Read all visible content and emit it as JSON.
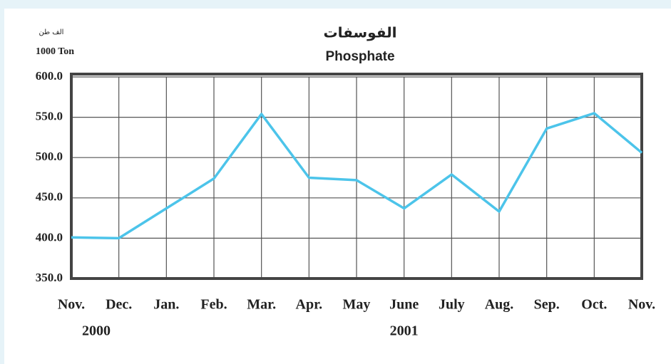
{
  "chart_data": {
    "type": "line",
    "title_ar": "الفوسفات",
    "title": "Phosphate",
    "unit_ar": "الف طن",
    "unit": "1000 Ton",
    "categories": [
      "Nov.",
      "Dec.",
      "Jan.",
      "Feb.",
      "Mar.",
      "Apr.",
      "May",
      "June",
      "July",
      "Aug.",
      "Sep.",
      "Oct.",
      "Nov."
    ],
    "year_labels": [
      "2000",
      "2001"
    ],
    "series": [
      {
        "name": "Phosphate",
        "color": "#4cc4ea",
        "values": [
          401,
          400,
          437,
          474,
          554,
          475,
          472,
          437,
          479,
          433,
          536,
          555,
          506
        ]
      }
    ],
    "ylim": [
      350,
      600
    ],
    "yticks": [
      {
        "value": 350,
        "label": "350.0"
      },
      {
        "value": 400,
        "label": "400.0"
      },
      {
        "value": 450,
        "label": "450.0"
      },
      {
        "value": 500,
        "label": "500.0"
      },
      {
        "value": 550,
        "label": "550.0"
      },
      {
        "value": 600,
        "label": "600.0"
      }
    ],
    "grid": true
  }
}
